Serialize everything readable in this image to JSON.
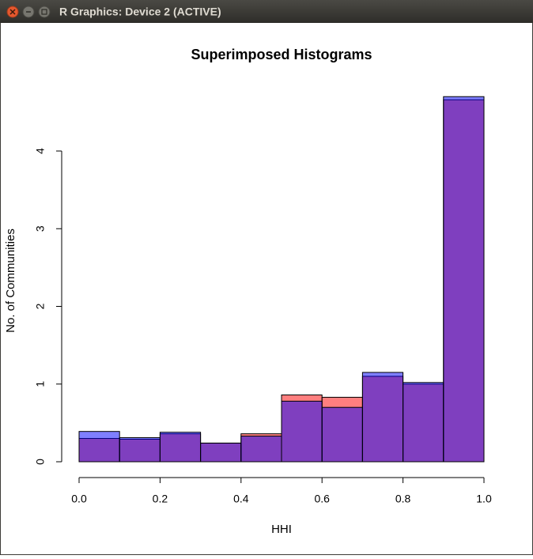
{
  "window": {
    "title": "R Graphics: Device 2 (ACTIVE)"
  },
  "chart_data": {
    "type": "histogram",
    "title": "Superimposed Histograms",
    "x_label": "HHI",
    "y_label": "No. of Communities",
    "bins": [
      0,
      0.1,
      0.2,
      0.3,
      0.4,
      0.5,
      0.6,
      0.7,
      0.8,
      0.9,
      1.0
    ],
    "series": [
      {
        "color": "#ff0000",
        "values": [
          0.3,
          0.29,
          0.36,
          0.24,
          0.36,
          0.86,
          0.83,
          1.1,
          1.0,
          4.66
        ]
      },
      {
        "color": "#0000ff",
        "values": [
          0.39,
          0.31,
          0.38,
          0.24,
          0.33,
          0.78,
          0.7,
          1.15,
          1.02,
          4.7
        ]
      }
    ],
    "opacity": 0.5,
    "xlim": [
      0,
      1
    ],
    "ylim": [
      0,
      4.8
    ],
    "xticks": [
      {
        "value": 0,
        "label": "0.0"
      },
      {
        "value": 0.2,
        "label": "0.2"
      },
      {
        "value": 0.4,
        "label": "0.4"
      },
      {
        "value": 0.6,
        "label": "0.6"
      },
      {
        "value": 0.8,
        "label": "0.8"
      },
      {
        "value": 1,
        "label": "1.0"
      }
    ],
    "yticks": [
      0,
      1,
      2,
      3,
      4
    ]
  }
}
